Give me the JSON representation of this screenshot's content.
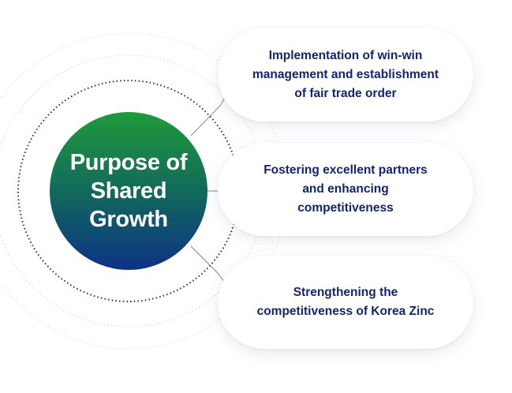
{
  "hub": {
    "title_lines": [
      "Purpose of",
      "Shared",
      "Growth"
    ]
  },
  "items": [
    {
      "lines": [
        "Implementation of win-win",
        "management and establishment",
        "of fair trade order"
      ]
    },
    {
      "lines": [
        "Fostering excellent partners",
        "and enhancing",
        "competitiveness"
      ]
    },
    {
      "lines": [
        "Strengthening the",
        "competitiveness of Korea Zinc"
      ]
    }
  ],
  "colors": {
    "text_navy": "#12256e",
    "gradient_top": "#1f9a3a",
    "gradient_bottom": "#0d3286",
    "dot_ring": "#1a2e78",
    "faint_ring": "#e6e9ef"
  }
}
